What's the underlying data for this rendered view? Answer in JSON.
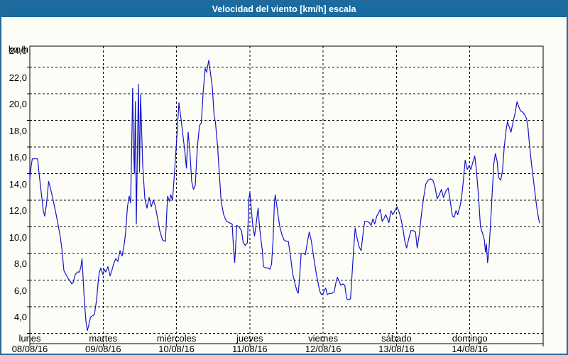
{
  "window": {
    "title": "Velocidad del viento [km/h] escala"
  },
  "colors": {
    "titlebar_bg": "#1a6b9f",
    "titlebar_text": "#ffffff",
    "window_border": "#24699a",
    "plot_bg": "#fdfdf8",
    "grid": "#000000",
    "line": "#1414c8"
  },
  "chart_data": {
    "type": "line",
    "title": "Velocidad del viento [km/h] escala",
    "y_unit_label": "km/h",
    "ylim": [
      3.2,
      25.6
    ],
    "y_tick_values": [
      4,
      6,
      8,
      10,
      12,
      14,
      16,
      18,
      20,
      22,
      24
    ],
    "y_tick_labels": [
      "4,0",
      "6,0",
      "8,0",
      "10,0",
      "12,0",
      "14,0",
      "16,0",
      "18,0",
      "20,0",
      "22,0",
      "24,0"
    ],
    "x_days": [
      {
        "name": "lunes",
        "date": "08/08/16"
      },
      {
        "name": "martes",
        "date": "09/08/16"
      },
      {
        "name": "miércoles",
        "date": "10/08/16"
      },
      {
        "name": "jueves",
        "date": "11/08/16"
      },
      {
        "name": "viernes",
        "date": "12/08/16"
      },
      {
        "name": "sábado",
        "date": "13/08/16"
      },
      {
        "name": "domingo",
        "date": "14/08/16"
      }
    ],
    "hours_total": 168,
    "grid": "dashed",
    "legend_position": "none",
    "series": [
      {
        "name": "Velocidad del viento [km/h]",
        "color": "#1414c8",
        "x_unit": "hours_from_monday_00:00",
        "points": [
          [
            0,
            15.6
          ],
          [
            0.46,
            16.6
          ],
          [
            0.81,
            17.1
          ],
          [
            1.63,
            17.1
          ],
          [
            2.56,
            17.1
          ],
          [
            3.02,
            16.0
          ],
          [
            3.72,
            14.6
          ],
          [
            4.41,
            13.2
          ],
          [
            4.88,
            12.8
          ],
          [
            5.46,
            13.7
          ],
          [
            6.16,
            15.4
          ],
          [
            6.74,
            14.9
          ],
          [
            7.43,
            14.2
          ],
          [
            8.37,
            13.2
          ],
          [
            9.29,
            12.1
          ],
          [
            9.99,
            11.2
          ],
          [
            10.46,
            10.4
          ],
          [
            11.15,
            8.7
          ],
          [
            11.85,
            8.4
          ],
          [
            12.55,
            8.1
          ],
          [
            13.24,
            7.9
          ],
          [
            13.71,
            7.7
          ],
          [
            14.17,
            7.8
          ],
          [
            14.87,
            8.4
          ],
          [
            15.57,
            8.6
          ],
          [
            16.26,
            8.6
          ],
          [
            16.73,
            9.0
          ],
          [
            17.08,
            9.6
          ],
          [
            17.43,
            8.2
          ],
          [
            17.89,
            6.3
          ],
          [
            18.36,
            4.9
          ],
          [
            18.82,
            4.2
          ],
          [
            19.29,
            4.6
          ],
          [
            19.87,
            5.2
          ],
          [
            20.45,
            5.3
          ],
          [
            21.14,
            5.4
          ],
          [
            21.84,
            6.5
          ],
          [
            22.42,
            8.0
          ],
          [
            22.77,
            8.6
          ],
          [
            23.24,
            8.9
          ],
          [
            23.93,
            8.4
          ],
          [
            24.4,
            8.8
          ],
          [
            24.86,
            8.6
          ],
          [
            25.56,
            9.0
          ],
          [
            26.26,
            8.3
          ],
          [
            26.95,
            8.8
          ],
          [
            27.42,
            9.2
          ],
          [
            28.12,
            9.6
          ],
          [
            28.81,
            9.4
          ],
          [
            29.51,
            10.2
          ],
          [
            30.21,
            9.8
          ],
          [
            30.9,
            10.7
          ],
          [
            31.37,
            11.6
          ],
          [
            31.95,
            13.5
          ],
          [
            32.53,
            14.3
          ],
          [
            32.99,
            13.8
          ],
          [
            33.46,
            19.5
          ],
          [
            33.64,
            22.4
          ],
          [
            33.92,
            18.2
          ],
          [
            34.22,
            16.0
          ],
          [
            34.55,
            21.4
          ],
          [
            34.85,
            12.2
          ],
          [
            35.2,
            17.5
          ],
          [
            35.55,
            22.7
          ],
          [
            35.9,
            16.1
          ],
          [
            36.25,
            21.9
          ],
          [
            36.6,
            19.2
          ],
          [
            36.94,
            16.6
          ],
          [
            37.64,
            14.1
          ],
          [
            38.34,
            13.4
          ],
          [
            39.03,
            14.2
          ],
          [
            39.73,
            13.5
          ],
          [
            40.43,
            14.0
          ],
          [
            41.01,
            13.6
          ],
          [
            41.59,
            12.9
          ],
          [
            42.52,
            11.7
          ],
          [
            43.45,
            11.0
          ],
          [
            44.38,
            10.9
          ],
          [
            45.08,
            14.3
          ],
          [
            45.66,
            13.9
          ],
          [
            46.12,
            14.4
          ],
          [
            46.7,
            14.0
          ],
          [
            47.4,
            16.2
          ],
          [
            48.1,
            18.7
          ],
          [
            48.8,
            21.3
          ],
          [
            49.49,
            20.1
          ],
          [
            50.19,
            18.7
          ],
          [
            50.77,
            17.6
          ],
          [
            51.24,
            16.4
          ],
          [
            51.82,
            19.1
          ],
          [
            52.4,
            17.6
          ],
          [
            52.98,
            15.4
          ],
          [
            53.56,
            14.8
          ],
          [
            54.14,
            15.1
          ],
          [
            54.84,
            18.0
          ],
          [
            55.54,
            19.6
          ],
          [
            56.12,
            19.8
          ],
          [
            56.7,
            22.0
          ],
          [
            57.4,
            23.9
          ],
          [
            57.86,
            23.6
          ],
          [
            58.56,
            24.5
          ],
          [
            59.14,
            23.5
          ],
          [
            59.72,
            22.5
          ],
          [
            60.3,
            20.4
          ],
          [
            60.77,
            19.8
          ],
          [
            61.47,
            18.0
          ],
          [
            62.28,
            15.1
          ],
          [
            62.63,
            13.9
          ],
          [
            63.44,
            12.9
          ],
          [
            64.37,
            12.4
          ],
          [
            65.3,
            12.3
          ],
          [
            66.23,
            12.2
          ],
          [
            66.7,
            10.3
          ],
          [
            67.05,
            9.3
          ],
          [
            67.74,
            12.1
          ],
          [
            68.44,
            12.0
          ],
          [
            69.26,
            11.7
          ],
          [
            69.84,
            10.8
          ],
          [
            70.53,
            10.6
          ],
          [
            71.23,
            10.8
          ],
          [
            71.7,
            14.1
          ],
          [
            72.04,
            14.6
          ],
          [
            72.51,
            13.2
          ],
          [
            72.97,
            12.1
          ],
          [
            73.55,
            11.3
          ],
          [
            74.13,
            12.3
          ],
          [
            74.71,
            13.4
          ],
          [
            75.18,
            12.0
          ],
          [
            75.65,
            11.0
          ],
          [
            76.11,
            10.2
          ],
          [
            76.46,
            9.0
          ],
          [
            77.16,
            8.9
          ],
          [
            77.85,
            8.9
          ],
          [
            78.55,
            8.8
          ],
          [
            79.13,
            9.2
          ],
          [
            79.6,
            11.0
          ],
          [
            80.06,
            13.8
          ],
          [
            80.3,
            14.4
          ],
          [
            80.76,
            13.7
          ],
          [
            81.34,
            12.7
          ],
          [
            81.81,
            12.0
          ],
          [
            82.51,
            11.4
          ],
          [
            83.2,
            11.0
          ],
          [
            83.9,
            10.9
          ],
          [
            84.6,
            10.9
          ],
          [
            85.3,
            9.8
          ],
          [
            86.0,
            8.5
          ],
          [
            86.69,
            7.8
          ],
          [
            87.39,
            7.2
          ],
          [
            87.86,
            7.0
          ],
          [
            88.32,
            8.3
          ],
          [
            88.79,
            10.0
          ],
          [
            89.48,
            10.0
          ],
          [
            90.18,
            9.9
          ],
          [
            90.88,
            10.9
          ],
          [
            91.46,
            11.6
          ],
          [
            92.16,
            10.9
          ],
          [
            92.97,
            9.6
          ],
          [
            93.67,
            8.6
          ],
          [
            94.25,
            7.9
          ],
          [
            94.83,
            7.2
          ],
          [
            95.41,
            6.9
          ],
          [
            96.0,
            7.0
          ],
          [
            96.81,
            7.4
          ],
          [
            97.39,
            6.9
          ],
          [
            98.09,
            7.0
          ],
          [
            98.9,
            7.0
          ],
          [
            99.6,
            7.1
          ],
          [
            100.18,
            7.8
          ],
          [
            100.64,
            8.2
          ],
          [
            101.23,
            7.9
          ],
          [
            101.81,
            7.6
          ],
          [
            102.5,
            7.7
          ],
          [
            103.08,
            7.6
          ],
          [
            103.67,
            6.6
          ],
          [
            104.36,
            6.5
          ],
          [
            104.95,
            6.6
          ],
          [
            105.41,
            8.2
          ],
          [
            105.99,
            10.3
          ],
          [
            106.46,
            11.9
          ],
          [
            107.04,
            11.2
          ],
          [
            107.74,
            10.5
          ],
          [
            108.43,
            10.2
          ],
          [
            109.13,
            11.6
          ],
          [
            109.6,
            12.4
          ],
          [
            110.41,
            12.4
          ],
          [
            111.11,
            12.3
          ],
          [
            111.69,
            12.1
          ],
          [
            112.27,
            12.6
          ],
          [
            112.85,
            12.2
          ],
          [
            113.55,
            12.8
          ],
          [
            114.25,
            13.1
          ],
          [
            114.71,
            13.3
          ],
          [
            115.29,
            12.4
          ],
          [
            115.87,
            12.6
          ],
          [
            116.45,
            12.9
          ],
          [
            117.04,
            12.6
          ],
          [
            117.5,
            12.3
          ],
          [
            118.2,
            13.2
          ],
          [
            118.78,
            12.9
          ],
          [
            119.48,
            13.2
          ],
          [
            120.17,
            13.5
          ],
          [
            120.87,
            13.1
          ],
          [
            121.45,
            12.6
          ],
          [
            122.15,
            11.8
          ],
          [
            122.73,
            10.9
          ],
          [
            123.31,
            10.4
          ],
          [
            124.01,
            11.1
          ],
          [
            124.7,
            11.7
          ],
          [
            125.52,
            11.7
          ],
          [
            126.21,
            11.6
          ],
          [
            126.79,
            10.4
          ],
          [
            127.49,
            11.5
          ],
          [
            128.19,
            13.0
          ],
          [
            128.89,
            14.2
          ],
          [
            129.58,
            15.2
          ],
          [
            130.4,
            15.5
          ],
          [
            131.09,
            15.6
          ],
          [
            131.91,
            15.5
          ],
          [
            132.6,
            15.0
          ],
          [
            133.3,
            14.1
          ],
          [
            134.0,
            14.4
          ],
          [
            134.7,
            14.8
          ],
          [
            135.39,
            14.2
          ],
          [
            136.21,
            14.7
          ],
          [
            136.9,
            14.9
          ],
          [
            137.6,
            13.9
          ],
          [
            138.3,
            12.8
          ],
          [
            138.88,
            12.7
          ],
          [
            139.46,
            13.2
          ],
          [
            140.04,
            12.9
          ],
          [
            140.74,
            13.5
          ],
          [
            141.2,
            14.0
          ],
          [
            141.9,
            15.5
          ],
          [
            142.48,
            17.0
          ],
          [
            143.18,
            16.3
          ],
          [
            143.76,
            16.6
          ],
          [
            144.34,
            16.3
          ],
          [
            144.92,
            16.8
          ],
          [
            145.62,
            17.3
          ],
          [
            146.08,
            16.4
          ],
          [
            146.78,
            14.5
          ],
          [
            147.48,
            12.0
          ],
          [
            148.18,
            11.5
          ],
          [
            148.76,
            11.0
          ],
          [
            149.11,
            10.1
          ],
          [
            149.45,
            10.7
          ],
          [
            149.8,
            9.3
          ],
          [
            150.15,
            9.9
          ],
          [
            150.73,
            12.0
          ],
          [
            151.31,
            14.5
          ],
          [
            151.89,
            16.8
          ],
          [
            152.36,
            17.5
          ],
          [
            152.94,
            16.9
          ],
          [
            153.4,
            15.7
          ],
          [
            154.1,
            15.5
          ],
          [
            154.68,
            16.2
          ],
          [
            155.26,
            18.0
          ],
          [
            155.84,
            19.2
          ],
          [
            156.31,
            19.9
          ],
          [
            156.89,
            19.5
          ],
          [
            157.47,
            19.1
          ],
          [
            158.17,
            19.9
          ],
          [
            158.87,
            20.6
          ],
          [
            159.45,
            21.4
          ],
          [
            160.03,
            21.0
          ],
          [
            160.61,
            20.7
          ],
          [
            161.31,
            20.6
          ],
          [
            162.01,
            20.4
          ],
          [
            162.59,
            20.1
          ],
          [
            163.05,
            19.4
          ],
          [
            163.52,
            18.2
          ],
          [
            164.1,
            16.9
          ],
          [
            164.56,
            16.0
          ],
          [
            165.15,
            14.9
          ],
          [
            165.61,
            14.0
          ],
          [
            166.08,
            13.2
          ],
          [
            166.54,
            12.6
          ],
          [
            166.77,
            12.3
          ]
        ]
      }
    ]
  }
}
